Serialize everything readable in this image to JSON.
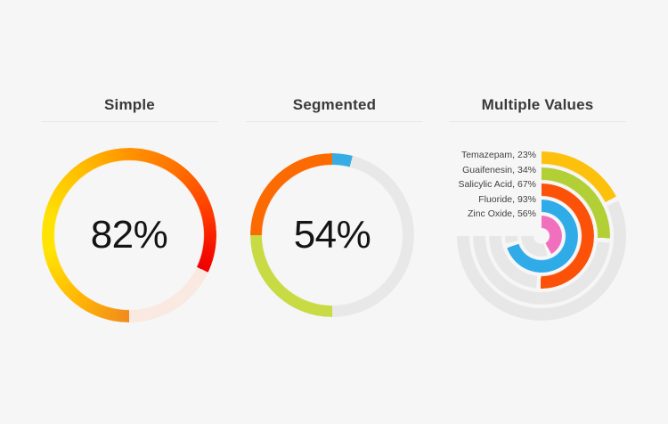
{
  "background_color": "#f6f6f6",
  "simple": {
    "title": "Simple",
    "value": 82,
    "value_label": "82%"
  },
  "segmented": {
    "title": "Segmented",
    "value": 54,
    "value_label": "54%",
    "segments": [
      {
        "name": "segment-1",
        "color": "#c8db45",
        "value": 25
      },
      {
        "name": "segment-2",
        "color": "#fc6a02",
        "value": 25
      },
      {
        "name": "segment-3",
        "color": "#35ade4",
        "value": 4
      }
    ],
    "track_color": "#e8e8e8"
  },
  "multiple": {
    "title": "Multiple Values",
    "items": [
      {
        "label": "Temazepam, 23%",
        "name": "Temazepam",
        "value": 23,
        "color": "#fcc00d"
      },
      {
        "label": "Guaifenesin, 34%",
        "name": "Guaifenesin",
        "value": 34,
        "color": "#b2cf35"
      },
      {
        "label": "Salicylic Acid, 67%",
        "name": "Salicylic Acid",
        "value": 67,
        "color": "#fb5108"
      },
      {
        "label": "Fluoride, 93%",
        "name": "Fluoride",
        "value": 93,
        "color": "#2face8"
      },
      {
        "label": "Zinc Oxide, 56%",
        "name": "Zinc Oxide",
        "value": 56,
        "color": "#f170be"
      }
    ],
    "track_color": "#e7e7e7"
  },
  "chart_data": [
    {
      "type": "pie",
      "variant": "radial-progress-ring",
      "title": "Simple",
      "values": [
        82
      ],
      "labels": [
        "progress"
      ],
      "max": 100,
      "start_angle_deg": 180,
      "direction": "clockwise",
      "fill_gradient": [
        "#f08b1d",
        "#ffe405",
        "#ff9300",
        "#f00000"
      ],
      "track_color": "#f9e9e0",
      "center_label": "82%"
    },
    {
      "type": "pie",
      "variant": "segmented-radial-progress-ring",
      "title": "Segmented",
      "total": 54,
      "max": 100,
      "start_angle_deg": 180,
      "direction": "clockwise",
      "series": [
        {
          "name": "green segment",
          "values": [
            25
          ],
          "color": "#c8db45"
        },
        {
          "name": "orange segment",
          "values": [
            25
          ],
          "color": "#fc6a02"
        },
        {
          "name": "blue segment",
          "values": [
            4
          ],
          "color": "#35ade4"
        }
      ],
      "track_color": "#e8e8e8",
      "center_label": "54%"
    },
    {
      "type": "pie",
      "variant": "radial-bar",
      "title": "Multiple Values",
      "categories": [
        "Temazepam",
        "Guaifenesin",
        "Salicylic Acid",
        "Fluoride",
        "Zinc Oxide"
      ],
      "values": [
        23,
        34,
        67,
        93,
        56
      ],
      "colors": [
        "#fcc00d",
        "#b2cf35",
        "#fb5108",
        "#2face8",
        "#f170be"
      ],
      "max": 100,
      "scale_sweep_deg": 270,
      "start_angle_deg": 0,
      "direction": "clockwise",
      "track_color": "#e7e7e7",
      "ring_order": "outermost-to-innermost",
      "legend_position": "upper-left"
    }
  ]
}
